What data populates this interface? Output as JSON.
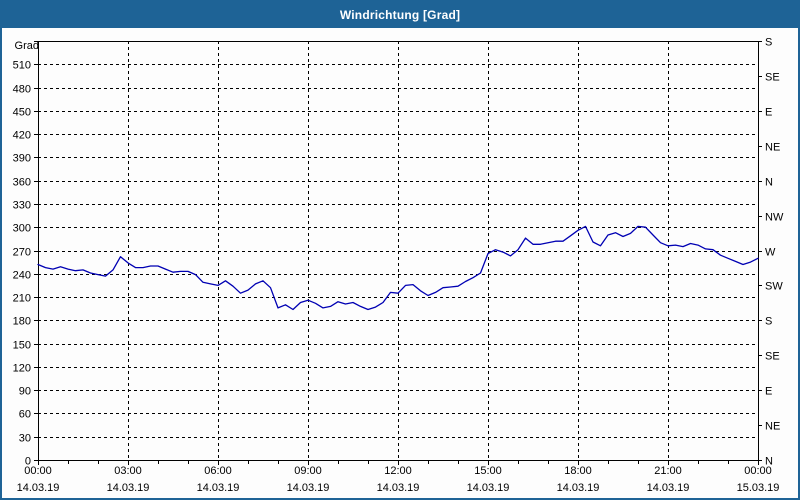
{
  "window": {
    "title": "Windrichtung [Grad]",
    "titlebar_color": "#1E6396",
    "border_color": "#1E6396",
    "background_color": "#FDFDFD"
  },
  "chart_data": {
    "type": "line",
    "title": "Windrichtung [Grad]",
    "ylabel": "Grad",
    "ylim": [
      0,
      540
    ],
    "y_tick_step_deg": 30,
    "y_gridline_step_deg": 30,
    "y_max_label": 510,
    "xlim_hours": [
      0,
      24
    ],
    "x_gridline_step_hours": 3,
    "x_minor_tick_hours": 1,
    "grid": "dashed-black",
    "line_color": "#0000B3",
    "x_tick_labels": [
      {
        "time": "00:00",
        "date": "14.03.19"
      },
      {
        "time": "03:00",
        "date": "14.03.19"
      },
      {
        "time": "06:00",
        "date": "14.03.19"
      },
      {
        "time": "09:00",
        "date": "14.03.19"
      },
      {
        "time": "12:00",
        "date": "14.03.19"
      },
      {
        "time": "15:00",
        "date": "14.03.19"
      },
      {
        "time": "18:00",
        "date": "14.03.19"
      },
      {
        "time": "21:00",
        "date": "14.03.19"
      },
      {
        "time": "00:00",
        "date": "15.03.19"
      }
    ],
    "y_right_step_deg": 45,
    "y_right_compass_labels": [
      "S",
      "SE",
      "E",
      "NE",
      "N",
      "NW",
      "W",
      "SW",
      "S",
      "SE",
      "E",
      "NE",
      "N"
    ],
    "series": [
      {
        "name": "Windrichtung",
        "unit": "Grad",
        "x_start_hour": 0,
        "x_step_hours": 0.25,
        "values": [
          252,
          248,
          246,
          249,
          246,
          244,
          245,
          241,
          239,
          237,
          245,
          262,
          254,
          248,
          248,
          250,
          250,
          246,
          242,
          243,
          243,
          239,
          229,
          227,
          225,
          231,
          224,
          215,
          219,
          227,
          231,
          222,
          196,
          200,
          194,
          203,
          206,
          202,
          196,
          198,
          204,
          201,
          203,
          198,
          194,
          197,
          203,
          216,
          215,
          225,
          226,
          218,
          212,
          216,
          222,
          223,
          224,
          230,
          235,
          241,
          266,
          271,
          268,
          263,
          271,
          286,
          278,
          278,
          280,
          282,
          282,
          289,
          296,
          301,
          281,
          276,
          290,
          293,
          288,
          292,
          301,
          300,
          290,
          280,
          276,
          277,
          275,
          279,
          277,
          272,
          271,
          264,
          260,
          256,
          252,
          255,
          260
        ]
      }
    ]
  }
}
